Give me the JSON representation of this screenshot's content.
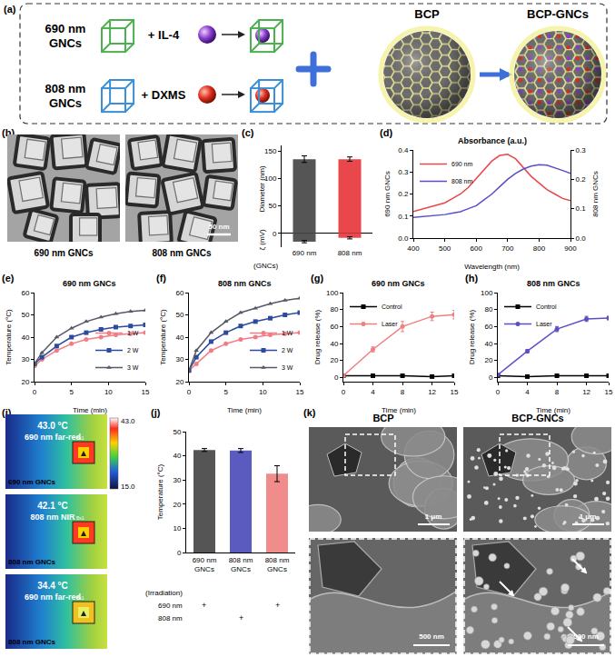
{
  "panel_labels": [
    "(a)",
    "(b)",
    "(c)",
    "(d)",
    "(e)",
    "(f)",
    "(g)",
    "(h)",
    "(i)",
    "(j)",
    "(k)"
  ],
  "diagram": {
    "rows": [
      {
        "label": "690 nm GNCs",
        "cargo": "+ IL-4"
      },
      {
        "label": "808 nm GNCs",
        "cargo": "+ DXMS"
      }
    ],
    "carrier": "BCP",
    "product": "BCP-GNCs"
  },
  "tem_images": {
    "labels": [
      "690 nm GNCs",
      "808 nm GNCs"
    ],
    "scale_bar": "50 nm"
  },
  "thermal_images": {
    "colorbar": {
      "max": "43.0",
      "min": "15.0"
    },
    "box_label": "Bx1",
    "frames": [
      {
        "temperature": "43.0 °C",
        "irradiation": "690 nm far-red",
        "sample": "690 nm GNCs"
      },
      {
        "temperature": "42.1 °C",
        "irradiation": "808 nm NIR",
        "sample": "808 nm GNCs"
      },
      {
        "temperature": "34.4 °C",
        "irradiation": "690 nm far-red",
        "sample": "808 nm GNCs"
      }
    ]
  },
  "sem_images": {
    "columns": [
      {
        "title": "BCP",
        "scale_top": "1 μm",
        "scale_bottom": "500 nm"
      },
      {
        "title": "BCP-GNCs",
        "scale_top": "1 μm",
        "scale_bottom": "500 nm"
      }
    ]
  },
  "chart_data": [
    {
      "type": "bar",
      "xlabel": "(GNCs)",
      "categories": [
        "690 nm",
        "808 nm"
      ],
      "colors": [
        "#555555",
        "#e8474c"
      ],
      "series": [
        {
          "name": "Diameter (nm)",
          "values": [
            135,
            135
          ],
          "errors": [
            6,
            4
          ]
        },
        {
          "name": "ζ (mV)",
          "values": [
            -15,
            -8
          ],
          "errors": [
            2,
            2
          ]
        }
      ],
      "ylim": [
        -25,
        160
      ],
      "yticks": [
        0,
        50,
        100,
        150
      ],
      "grid": false
    },
    {
      "type": "line",
      "title": "Absorbance (a.u.)",
      "xlabel": "Wavelength (nm)",
      "ylabel": "690 nm GNCs",
      "y2label": "808 nm GNCs",
      "x": [
        400,
        425,
        450,
        475,
        500,
        525,
        550,
        575,
        600,
        625,
        650,
        675,
        700,
        725,
        750,
        775,
        800,
        825,
        850,
        875,
        900
      ],
      "series": [
        {
          "name": "690 nm",
          "color": "#e8474c",
          "values": [
            0.12,
            0.13,
            0.14,
            0.15,
            0.16,
            0.18,
            0.2,
            0.23,
            0.27,
            0.31,
            0.35,
            0.375,
            0.38,
            0.36,
            0.32,
            0.28,
            0.25,
            0.22,
            0.2,
            0.18,
            0.17
          ]
        },
        {
          "name": "808 nm",
          "color": "#5b4fc8",
          "axis": "y2",
          "values": [
            0.07,
            0.072,
            0.074,
            0.076,
            0.08,
            0.085,
            0.09,
            0.1,
            0.11,
            0.13,
            0.15,
            0.175,
            0.2,
            0.22,
            0.235,
            0.245,
            0.25,
            0.248,
            0.24,
            0.23,
            0.22
          ]
        }
      ],
      "xlim": [
        400,
        900
      ],
      "xticks": [
        400,
        500,
        600,
        700,
        800,
        900
      ],
      "ylim": [
        0,
        0.4
      ],
      "yticks": [
        {
          "value": 0,
          "label": "0.0"
        },
        0.1,
        0.2,
        0.3,
        0.4
      ],
      "y2lim": [
        0,
        0.3
      ],
      "y2ticks": [
        {
          "value": 0,
          "label": "0.0"
        },
        0.1,
        0.2,
        0.3
      ],
      "legend": "upper left",
      "grid": false
    },
    {
      "type": "line",
      "title": "690 nm GNCs",
      "xlabel": "Time (min)",
      "ylabel": "Temperature (°C)",
      "x": [
        0,
        1,
        3,
        5,
        7,
        9,
        11,
        13,
        15
      ],
      "series": [
        {
          "name": "1 W",
          "color": "#f27c84",
          "marker": "circle",
          "values": [
            27,
            30,
            34,
            37,
            39,
            40,
            41,
            41.5,
            42
          ]
        },
        {
          "name": "2 W",
          "color": "#2c4a9e",
          "marker": "square",
          "values": [
            28,
            31,
            36,
            40,
            42,
            43.5,
            44.5,
            45,
            45.5
          ]
        },
        {
          "name": "3 W",
          "color": "#555a66",
          "marker": "triangle",
          "values": [
            28,
            33,
            40,
            44,
            47,
            49,
            50.5,
            51.5,
            52
          ]
        }
      ],
      "xlim": [
        0,
        15
      ],
      "xticks": [
        0,
        5,
        10,
        15
      ],
      "ylim": [
        20,
        60
      ],
      "yticks": [
        20,
        30,
        40,
        50,
        60
      ],
      "legend": "lower right",
      "grid": false
    },
    {
      "type": "line",
      "title": "808 nm GNCs",
      "xlabel": "Time (min)",
      "ylabel": "Temperature (°C)",
      "x": [
        0,
        1,
        3,
        5,
        7,
        9,
        11,
        13,
        15
      ],
      "series": [
        {
          "name": "1 W",
          "color": "#f27c84",
          "marker": "circle",
          "values": [
            25,
            28,
            34,
            37,
            39,
            40,
            41,
            41.5,
            42
          ]
        },
        {
          "name": "2 W",
          "color": "#2c4a9e",
          "marker": "square",
          "values": [
            25,
            31,
            38,
            42,
            45,
            47,
            48.5,
            50,
            51
          ]
        },
        {
          "name": "3 W",
          "color": "#555a66",
          "marker": "triangle",
          "values": [
            25,
            34,
            42,
            47,
            51,
            53,
            55,
            56.5,
            57.5
          ]
        }
      ],
      "xlim": [
        0,
        15
      ],
      "xticks": [
        0,
        5,
        10,
        15
      ],
      "ylim": [
        20,
        60
      ],
      "yticks": [
        20,
        30,
        40,
        50,
        60
      ],
      "legend": "lower right",
      "grid": false
    },
    {
      "type": "line",
      "title": "690 nm GNCs",
      "xlabel": "Time (min)",
      "ylabel": "Drug release (%)",
      "x": [
        0,
        4,
        8,
        12,
        15
      ],
      "series": [
        {
          "name": "Control",
          "color": "#000000",
          "marker": "square",
          "values": [
            2,
            2,
            2,
            1,
            2
          ],
          "errors": [
            1,
            1,
            1,
            1,
            1
          ]
        },
        {
          "name": "Laser",
          "color": "#f08080",
          "marker": "circle",
          "values": [
            2,
            33,
            60,
            72,
            74
          ],
          "errors": [
            1,
            3,
            6,
            5,
            5
          ]
        }
      ],
      "xlim": [
        0,
        15
      ],
      "xticks": [
        0,
        4,
        8,
        12,
        15
      ],
      "ylim": [
        -5,
        100
      ],
      "yticks": [
        0,
        20,
        40,
        60,
        80,
        100
      ],
      "legend": "upper left",
      "grid": false
    },
    {
      "type": "line",
      "title": "808 nm GNCs",
      "xlabel": "Time (min)",
      "ylabel": "Drug release (%)",
      "x": [
        0,
        4,
        8,
        12,
        15
      ],
      "series": [
        {
          "name": "Control",
          "color": "#000000",
          "marker": "square",
          "values": [
            2,
            1,
            2,
            2,
            2
          ],
          "errors": [
            1,
            1,
            1,
            1,
            1
          ]
        },
        {
          "name": "Laser",
          "color": "#5b4fc8",
          "marker": "circle",
          "values": [
            3,
            31,
            57,
            69,
            70
          ],
          "errors": [
            1,
            2,
            3,
            3,
            2
          ]
        }
      ],
      "xlim": [
        0,
        15
      ],
      "xticks": [
        0,
        4,
        8,
        12,
        15
      ],
      "ylim": [
        -5,
        100
      ],
      "yticks": [
        0,
        20,
        40,
        60,
        80,
        100
      ],
      "legend": "upper left",
      "grid": false
    },
    {
      "type": "bar",
      "ylabel": "Temperature (°C)",
      "categories": [
        "690 nm GNCs",
        "808 nm GNCs",
        "808 nm GNCs"
      ],
      "values": [
        42.4,
        42.2,
        32.6
      ],
      "errors": [
        0.6,
        0.8,
        3.3
      ],
      "colors": [
        "#555555",
        "#5b5bbf",
        "#f08c8c"
      ],
      "irradiation": {
        "label": "(Irradiation)",
        "rows": [
          {
            "label": "690 nm",
            "marks": [
              "+",
              null,
              "+"
            ]
          },
          {
            "label": "808 nm",
            "marks": [
              null,
              "+",
              null
            ]
          }
        ]
      },
      "ylim": [
        0,
        50
      ],
      "yticks": [
        0,
        10,
        20,
        30,
        40,
        50
      ],
      "grid": false
    }
  ]
}
